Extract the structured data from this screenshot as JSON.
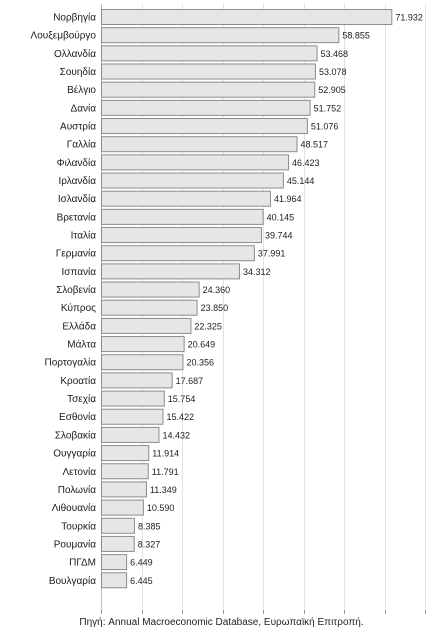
{
  "chart_data": {
    "type": "bar",
    "orientation": "horizontal",
    "categories": [
      "Νορβηγία",
      "Λουξεμβούργο",
      "Ολλανδία",
      "Σουηδία",
      "Βέλγιο",
      "Δανία",
      "Αυστρία",
      "Γαλλία",
      "Φιλανδία",
      "Ιρλανδία",
      "Ισλανδία",
      "Βρετανία",
      "Ιταλία",
      "Γερμανία",
      "Ισπανία",
      "Σλοβενία",
      "Κύπρος",
      "Ελλάδα",
      "Μάλτα",
      "Πορτογαλία",
      "Κροατία",
      "Τσεχία",
      "Εσθονία",
      "Σλοβακία",
      "Ουγγαρία",
      "Λετονία",
      "Πολωνία",
      "Λιθουανία",
      "Τουρκία",
      "Ρουμανία",
      "ΠΓΔΜ",
      "Βουλγαρία"
    ],
    "values": [
      71.932,
      58.855,
      53.468,
      53.078,
      52.905,
      51.752,
      51.076,
      48.517,
      46.423,
      45.144,
      41.964,
      40.145,
      39.744,
      37.991,
      34.312,
      24.36,
      23.85,
      22.325,
      20.649,
      20.356,
      17.687,
      15.754,
      15.422,
      14.432,
      11.914,
      11.791,
      11.349,
      10.59,
      8.385,
      8.327,
      6.449,
      6.445
    ],
    "value_labels": [
      "71.932",
      "58.855",
      "53.468",
      "53.078",
      "52.905",
      "51.752",
      "51.076",
      "48.517",
      "46.423",
      "45.144",
      "41.964",
      "40.145",
      "39.744",
      "37.991",
      "34.312",
      "24.360",
      "23.850",
      "22.325",
      "20.649",
      "20.356",
      "17.687",
      "15.754",
      "15.422",
      "14.432",
      "11.914",
      "11.791",
      "11.349",
      "10.590",
      "8.385",
      "8.327",
      "6.449",
      "6.445"
    ],
    "xlim": [
      0,
      80
    ],
    "grid": true,
    "bar_color": "#e6e6e6",
    "bar_edge_color": "#8c8c8c",
    "grid_color": "#e2e2e2"
  },
  "source": "Πηγή: Annual Macroeconomic Database, Ευρωπαϊκή Επιτροπή."
}
